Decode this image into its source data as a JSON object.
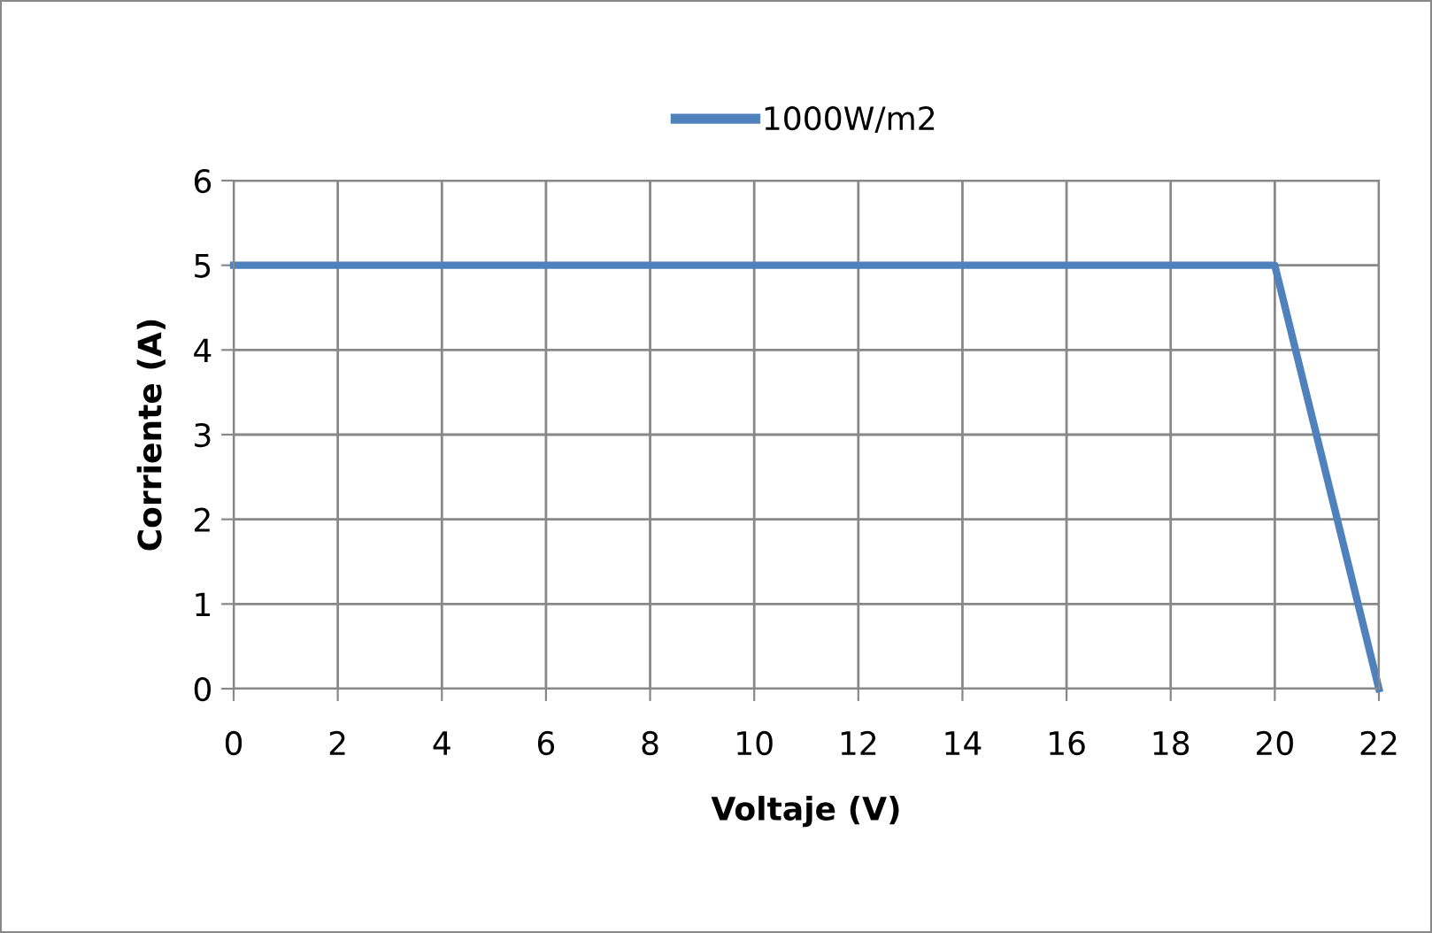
{
  "chart_data": {
    "type": "line",
    "xlabel": "Voltaje (V)",
    "ylabel": "Corriente (A)",
    "x": [
      0,
      20,
      22
    ],
    "series": [
      {
        "name": "1000W/m2",
        "color": "#4f81bd",
        "values": [
          5,
          5,
          0
        ]
      }
    ],
    "xlim": [
      0,
      22
    ],
    "xticks": [
      0,
      2,
      4,
      6,
      8,
      10,
      12,
      14,
      16,
      18,
      20,
      22
    ],
    "ylim": [
      0,
      6
    ],
    "yticks": [
      0,
      1,
      2,
      3,
      4,
      5,
      6
    ],
    "grid": true,
    "legend": "top",
    "marker": "none",
    "line_style": "solid"
  }
}
